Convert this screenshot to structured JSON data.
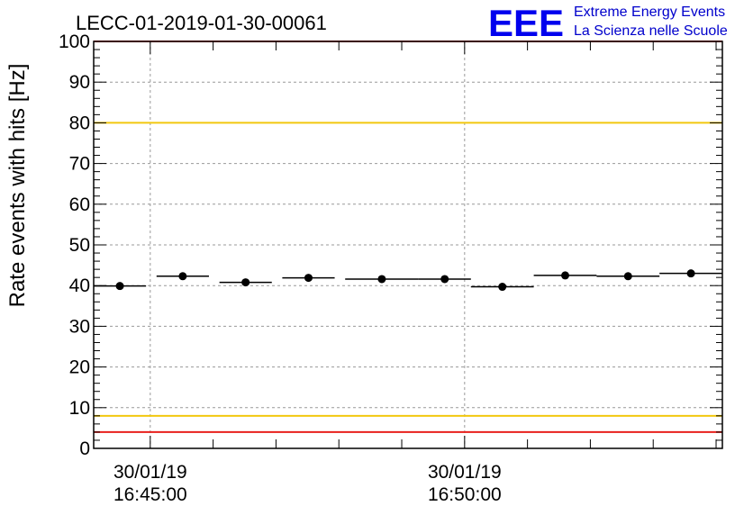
{
  "chart_data": {
    "type": "scatter",
    "title": "LECC-01-2019-01-30-00061",
    "ylabel": "Rate events with hits [Hz]",
    "xlabel": "",
    "ylim": [
      0,
      100
    ],
    "yticks": [
      "0",
      "10",
      "20",
      "30",
      "40",
      "50",
      "60",
      "70",
      "80",
      "90",
      "100"
    ],
    "xlim": [
      "16:44:06",
      "16:54:06"
    ],
    "xticks": [
      {
        "time": "16:45:00",
        "date_label": "30/01/19",
        "time_label": "16:45:00"
      },
      {
        "time": "16:50:00",
        "date_label": "30/01/19",
        "time_label": "16:50:00"
      }
    ],
    "grid": true,
    "points": [
      {
        "x_start": "16:44:06",
        "x_end": "16:44:56",
        "x": "16:44:31",
        "y": 39.9
      },
      {
        "x_start": "16:45:06",
        "x_end": "16:45:56",
        "x": "16:45:31",
        "y": 42.3
      },
      {
        "x_start": "16:46:06",
        "x_end": "16:46:56",
        "x": "16:46:31",
        "y": 40.8
      },
      {
        "x_start": "16:47:06",
        "x_end": "16:47:56",
        "x": "16:47:31",
        "y": 41.9
      },
      {
        "x_start": "16:48:06",
        "x_end": "16:49:16",
        "x": "16:48:41",
        "y": 41.6
      },
      {
        "x_start": "16:49:16",
        "x_end": "16:50:06",
        "x": "16:49:41",
        "y": 41.6
      },
      {
        "x_start": "16:50:06",
        "x_end": "16:51:06",
        "x": "16:50:36",
        "y": 39.7
      },
      {
        "x_start": "16:51:06",
        "x_end": "16:52:06",
        "x": "16:51:36",
        "y": 42.5
      },
      {
        "x_start": "16:52:06",
        "x_end": "16:53:06",
        "x": "16:52:36",
        "y": 42.3
      },
      {
        "x_start": "16:53:06",
        "x_end": "16:54:06",
        "x": "16:53:36",
        "y": 43.0
      }
    ],
    "reference_lines": [
      {
        "y": 4,
        "color": "#e8201c"
      },
      {
        "y": 8,
        "color": "#f2c80f"
      },
      {
        "y": 80,
        "color": "#f2c80f"
      },
      {
        "y": 100,
        "color": "#e8201c"
      }
    ]
  },
  "logo": {
    "mark": "EEE",
    "line1": "Extreme Energy Events",
    "line2": "La Scienza nelle Scuole",
    "color": "#0000cc"
  }
}
